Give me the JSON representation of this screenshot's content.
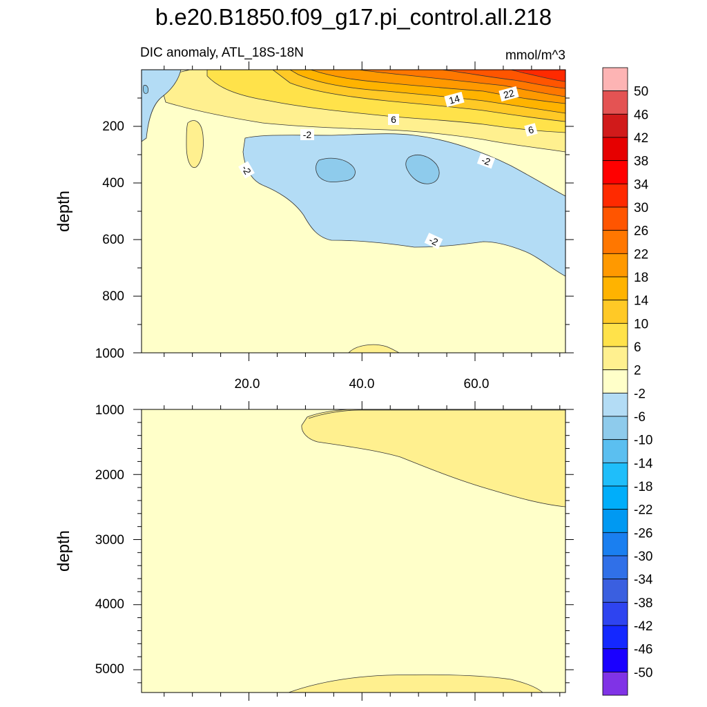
{
  "chart_data": {
    "type": "contour",
    "title": "b.e20.B1850.f09_g17.pi_control.all.218",
    "subtitle_left": "DIC anomaly, ATL_18S-18N",
    "subtitle_right": "mmol/m^3",
    "panels": [
      {
        "id": "upper",
        "ylabel": "depth",
        "ylim": [
          1000,
          0
        ],
        "yticks": [
          "200",
          "400",
          "600",
          "800",
          "1000"
        ],
        "xlim": [
          1,
          76
        ],
        "xticks": [
          "20.0",
          "40.0",
          "60.0"
        ],
        "contour_labels": [
          "14",
          "22",
          "6",
          "6",
          "-2",
          "-2",
          "-2",
          "-2"
        ]
      },
      {
        "id": "lower",
        "ylabel": "depth",
        "ylim": [
          5350,
          1000
        ],
        "yticks": [
          "1000",
          "2000",
          "3000",
          "4000",
          "5000"
        ],
        "xlim": [
          1,
          76
        ]
      }
    ],
    "colorbar": {
      "labels": [
        "50",
        "46",
        "42",
        "38",
        "34",
        "30",
        "26",
        "22",
        "18",
        "14",
        "10",
        "6",
        "2",
        "-2",
        "-6",
        "-10",
        "-14",
        "-18",
        "-22",
        "-26",
        "-30",
        "-34",
        "-38",
        "-42",
        "-46",
        "-50"
      ],
      "colors": [
        "#fdb4b4",
        "#e45353",
        "#d11a1a",
        "#e60000",
        "#ff0000",
        "#ff2a00",
        "#ff5500",
        "#ff7700",
        "#ff9900",
        "#ffb300",
        "#ffc926",
        "#ffe24a",
        "#fff08f",
        "#ffffc9",
        "#b3dcf5",
        "#8ecbec",
        "#5bbff0",
        "#1fbefa",
        "#00aefa",
        "#0099f2",
        "#1a7ff0",
        "#3070e8",
        "#3a5fe0",
        "#2e44f0",
        "#1428ff",
        "#1a00ff",
        "#8033e6"
      ]
    }
  }
}
